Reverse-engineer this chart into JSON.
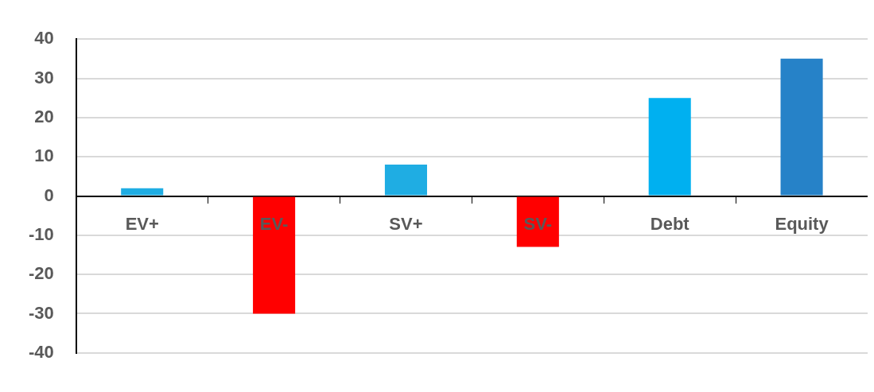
{
  "chart_data": {
    "type": "bar",
    "categories": [
      "EV+",
      "EV-",
      "SV+",
      "SV-",
      "Debt",
      "Equity"
    ],
    "values": [
      2,
      -30,
      8,
      -13,
      25,
      35
    ],
    "colors": [
      "#1fade3",
      "#ff0000",
      "#1fade3",
      "#ff0000",
      "#00b0f0",
      "#2682c8"
    ],
    "ylim": [
      -40,
      40
    ],
    "yticks": [
      -40,
      -30,
      -20,
      -10,
      0,
      10,
      20,
      30,
      40
    ],
    "grid": "y"
  }
}
